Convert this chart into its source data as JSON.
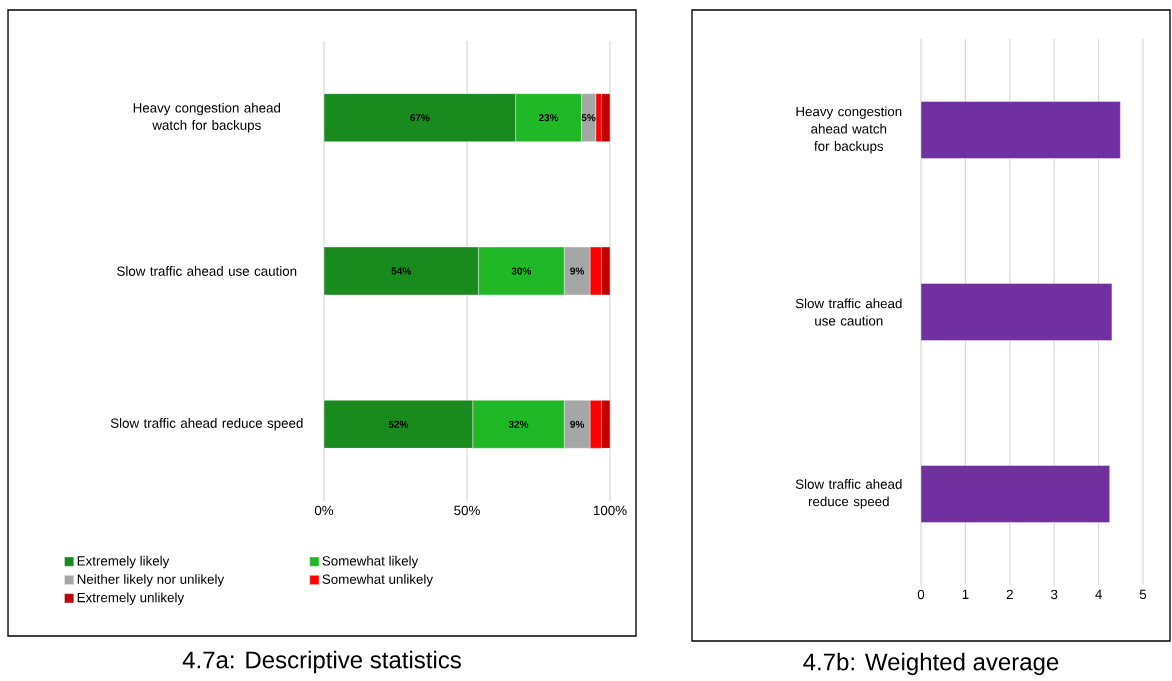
{
  "chart_data": [
    {
      "type": "bar",
      "orientation": "horizontal",
      "stacked": true,
      "title": "4.7a: Descriptive statistics",
      "categories": [
        "Heavy congestion ahead watch for backups",
        "Slow traffic ahead use caution",
        "Slow traffic ahead reduce speed"
      ],
      "series": [
        {
          "name": "Extremely likely",
          "color": "#188a1e",
          "values": [
            67,
            54,
            52
          ],
          "value_labels": [
            "67%",
            "54%",
            "52%"
          ]
        },
        {
          "name": "Somewhat likely",
          "color": "#20b826",
          "values": [
            23,
            30,
            32
          ],
          "value_labels": [
            "23%",
            "30%",
            "32%"
          ]
        },
        {
          "name": "Neither likely nor unlikely",
          "color": "#a6a6a6",
          "values": [
            5,
            9,
            9
          ],
          "value_labels": [
            "5%",
            "9%",
            "9%"
          ]
        },
        {
          "name": "Somewhat unlikely",
          "color": "#ff0000",
          "values": [
            2,
            4,
            4
          ]
        },
        {
          "name": "Extremely unlikely",
          "color": "#c00000",
          "values": [
            3,
            3,
            3
          ]
        }
      ],
      "xlim": [
        0,
        100
      ],
      "xticks": [
        {
          "value": 0,
          "label": "0%"
        },
        {
          "value": 50,
          "label": "50%"
        },
        {
          "value": 100,
          "label": "100%"
        }
      ],
      "grid": "x",
      "legend": "bottom"
    },
    {
      "type": "bar",
      "orientation": "horizontal",
      "title": "4.7b: Weighted average",
      "categories": [
        "Heavy congestion ahead watch for backups",
        "Slow traffic ahead use caution",
        "Slow traffic ahead reduce speed"
      ],
      "series": [
        {
          "color": "#7030a0",
          "values": [
            4.49,
            4.3,
            4.25
          ]
        }
      ],
      "xlim": [
        0,
        5
      ],
      "xticks": [
        0,
        1,
        2,
        3,
        4,
        5
      ],
      "grid": "x"
    }
  ]
}
